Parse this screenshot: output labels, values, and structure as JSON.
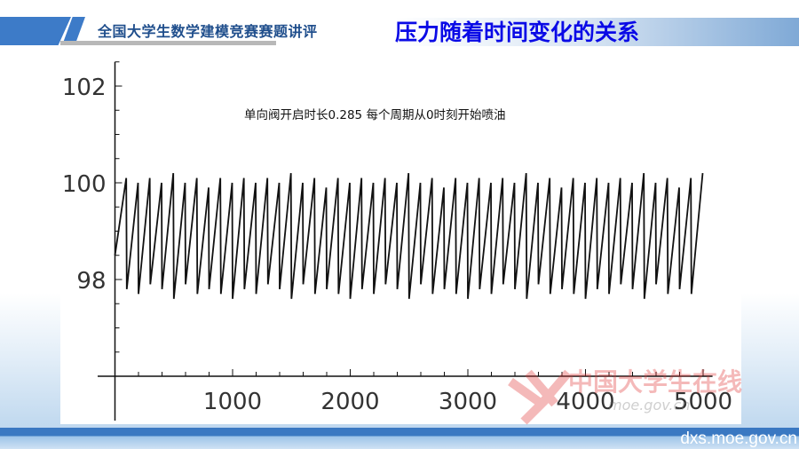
{
  "header": {
    "subtitle": "全国大学生数学建模竞赛赛题讲评",
    "title": "压力随着时间变化的关系"
  },
  "footer": {
    "url": "dxs.moe.gov.cn"
  },
  "watermark": {
    "text": "中国大学生在线",
    "url": "dxs.moe.gov.cn"
  },
  "colors": {
    "title": "#0a0ae6",
    "subtitle": "#1f4e8c",
    "accent": "#3d7bc8",
    "line": "#111111",
    "watermark": "#e23a3a"
  },
  "chart_data": {
    "type": "line",
    "title": "",
    "annotation": "单向阀开启时长0.285  每个周期从0时刻开始喷油",
    "xlabel": "",
    "ylabel": "",
    "xlim": [
      0,
      5080
    ],
    "ylim": [
      96,
      102.5
    ],
    "x_ticks": [
      1000,
      2000,
      3000,
      4000,
      5000
    ],
    "x_tick_labels": [
      "1000",
      "2000",
      "3000",
      "4000",
      "5000"
    ],
    "x_minor_step": 200,
    "y_ticks": [
      98,
      100,
      102
    ],
    "y_tick_labels": [
      "98",
      "100",
      "102"
    ],
    "y_minor_step": 0.5,
    "grid": false,
    "series": [
      {
        "points": [
          [
            0,
            98.5
          ],
          [
            96,
            100.1
          ],
          [
            100,
            97.8
          ],
          [
            196,
            100.0
          ],
          [
            200,
            97.7
          ],
          [
            296,
            100.1
          ],
          [
            300,
            97.9
          ],
          [
            396,
            100.0
          ],
          [
            400,
            97.8
          ],
          [
            496,
            100.2
          ],
          [
            500,
            97.6
          ],
          [
            596,
            100.0
          ],
          [
            600,
            97.9
          ],
          [
            696,
            100.1
          ],
          [
            700,
            97.7
          ],
          [
            796,
            99.9
          ],
          [
            800,
            97.8
          ],
          [
            896,
            100.1
          ],
          [
            900,
            97.7
          ],
          [
            996,
            100.0
          ],
          [
            1000,
            97.6
          ],
          [
            1096,
            100.1
          ],
          [
            1100,
            97.8
          ],
          [
            1196,
            100.0
          ],
          [
            1200,
            97.7
          ],
          [
            1296,
            100.1
          ],
          [
            1300,
            97.9
          ],
          [
            1396,
            100.0
          ],
          [
            1400,
            97.8
          ],
          [
            1496,
            100.2
          ],
          [
            1500,
            97.6
          ],
          [
            1596,
            100.0
          ],
          [
            1600,
            97.9
          ],
          [
            1696,
            100.1
          ],
          [
            1700,
            97.7
          ],
          [
            1796,
            99.9
          ],
          [
            1800,
            97.8
          ],
          [
            1896,
            100.1
          ],
          [
            1900,
            97.7
          ],
          [
            1996,
            100.0
          ],
          [
            2000,
            97.6
          ],
          [
            2096,
            100.1
          ],
          [
            2100,
            97.8
          ],
          [
            2196,
            100.0
          ],
          [
            2200,
            97.7
          ],
          [
            2296,
            100.1
          ],
          [
            2300,
            97.9
          ],
          [
            2396,
            100.0
          ],
          [
            2400,
            97.8
          ],
          [
            2496,
            100.2
          ],
          [
            2500,
            97.6
          ],
          [
            2596,
            100.0
          ],
          [
            2600,
            97.9
          ],
          [
            2696,
            100.1
          ],
          [
            2700,
            97.7
          ],
          [
            2796,
            99.9
          ],
          [
            2800,
            97.8
          ],
          [
            2896,
            100.1
          ],
          [
            2900,
            97.7
          ],
          [
            2996,
            100.0
          ],
          [
            3000,
            97.6
          ],
          [
            3096,
            100.1
          ],
          [
            3100,
            97.8
          ],
          [
            3196,
            100.0
          ],
          [
            3200,
            97.7
          ],
          [
            3296,
            100.1
          ],
          [
            3300,
            97.9
          ],
          [
            3396,
            100.0
          ],
          [
            3400,
            97.8
          ],
          [
            3496,
            100.2
          ],
          [
            3500,
            97.6
          ],
          [
            3596,
            100.0
          ],
          [
            3600,
            97.9
          ],
          [
            3696,
            100.1
          ],
          [
            3700,
            97.7
          ],
          [
            3796,
            99.9
          ],
          [
            3800,
            97.8
          ],
          [
            3896,
            100.1
          ],
          [
            3900,
            97.7
          ],
          [
            3996,
            100.0
          ],
          [
            4000,
            97.6
          ],
          [
            4096,
            100.1
          ],
          [
            4100,
            97.8
          ],
          [
            4196,
            100.0
          ],
          [
            4200,
            97.7
          ],
          [
            4296,
            100.1
          ],
          [
            4300,
            97.9
          ],
          [
            4396,
            100.0
          ],
          [
            4400,
            97.8
          ],
          [
            4496,
            100.2
          ],
          [
            4500,
            97.6
          ],
          [
            4596,
            100.0
          ],
          [
            4600,
            97.9
          ],
          [
            4696,
            100.1
          ],
          [
            4700,
            97.7
          ],
          [
            4796,
            99.9
          ],
          [
            4800,
            97.8
          ],
          [
            4896,
            100.1
          ],
          [
            4900,
            97.7
          ],
          [
            4996,
            100.2
          ]
        ]
      }
    ]
  }
}
